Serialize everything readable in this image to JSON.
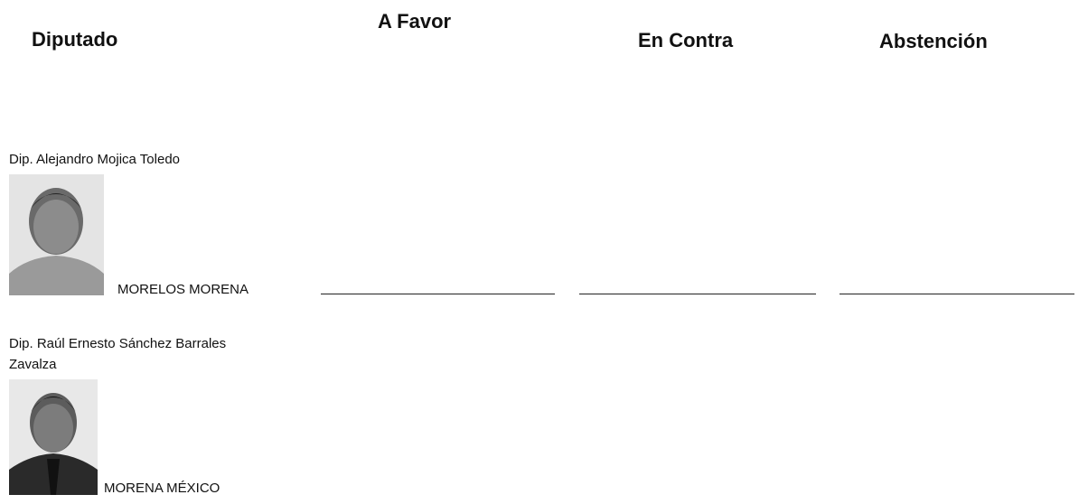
{
  "header": {
    "columns": [
      "Diputado",
      "A Favor",
      "En Contra",
      "Abstención"
    ]
  },
  "rows": [
    {
      "name": "Dip. Alejandro Mojica Toledo",
      "affiliation": "MORELOS MORENA"
    },
    {
      "name": "Dip. Raúl Ernesto Sánchez Barrales Zavalza",
      "affiliation": "MORENA MÉXICO"
    }
  ]
}
